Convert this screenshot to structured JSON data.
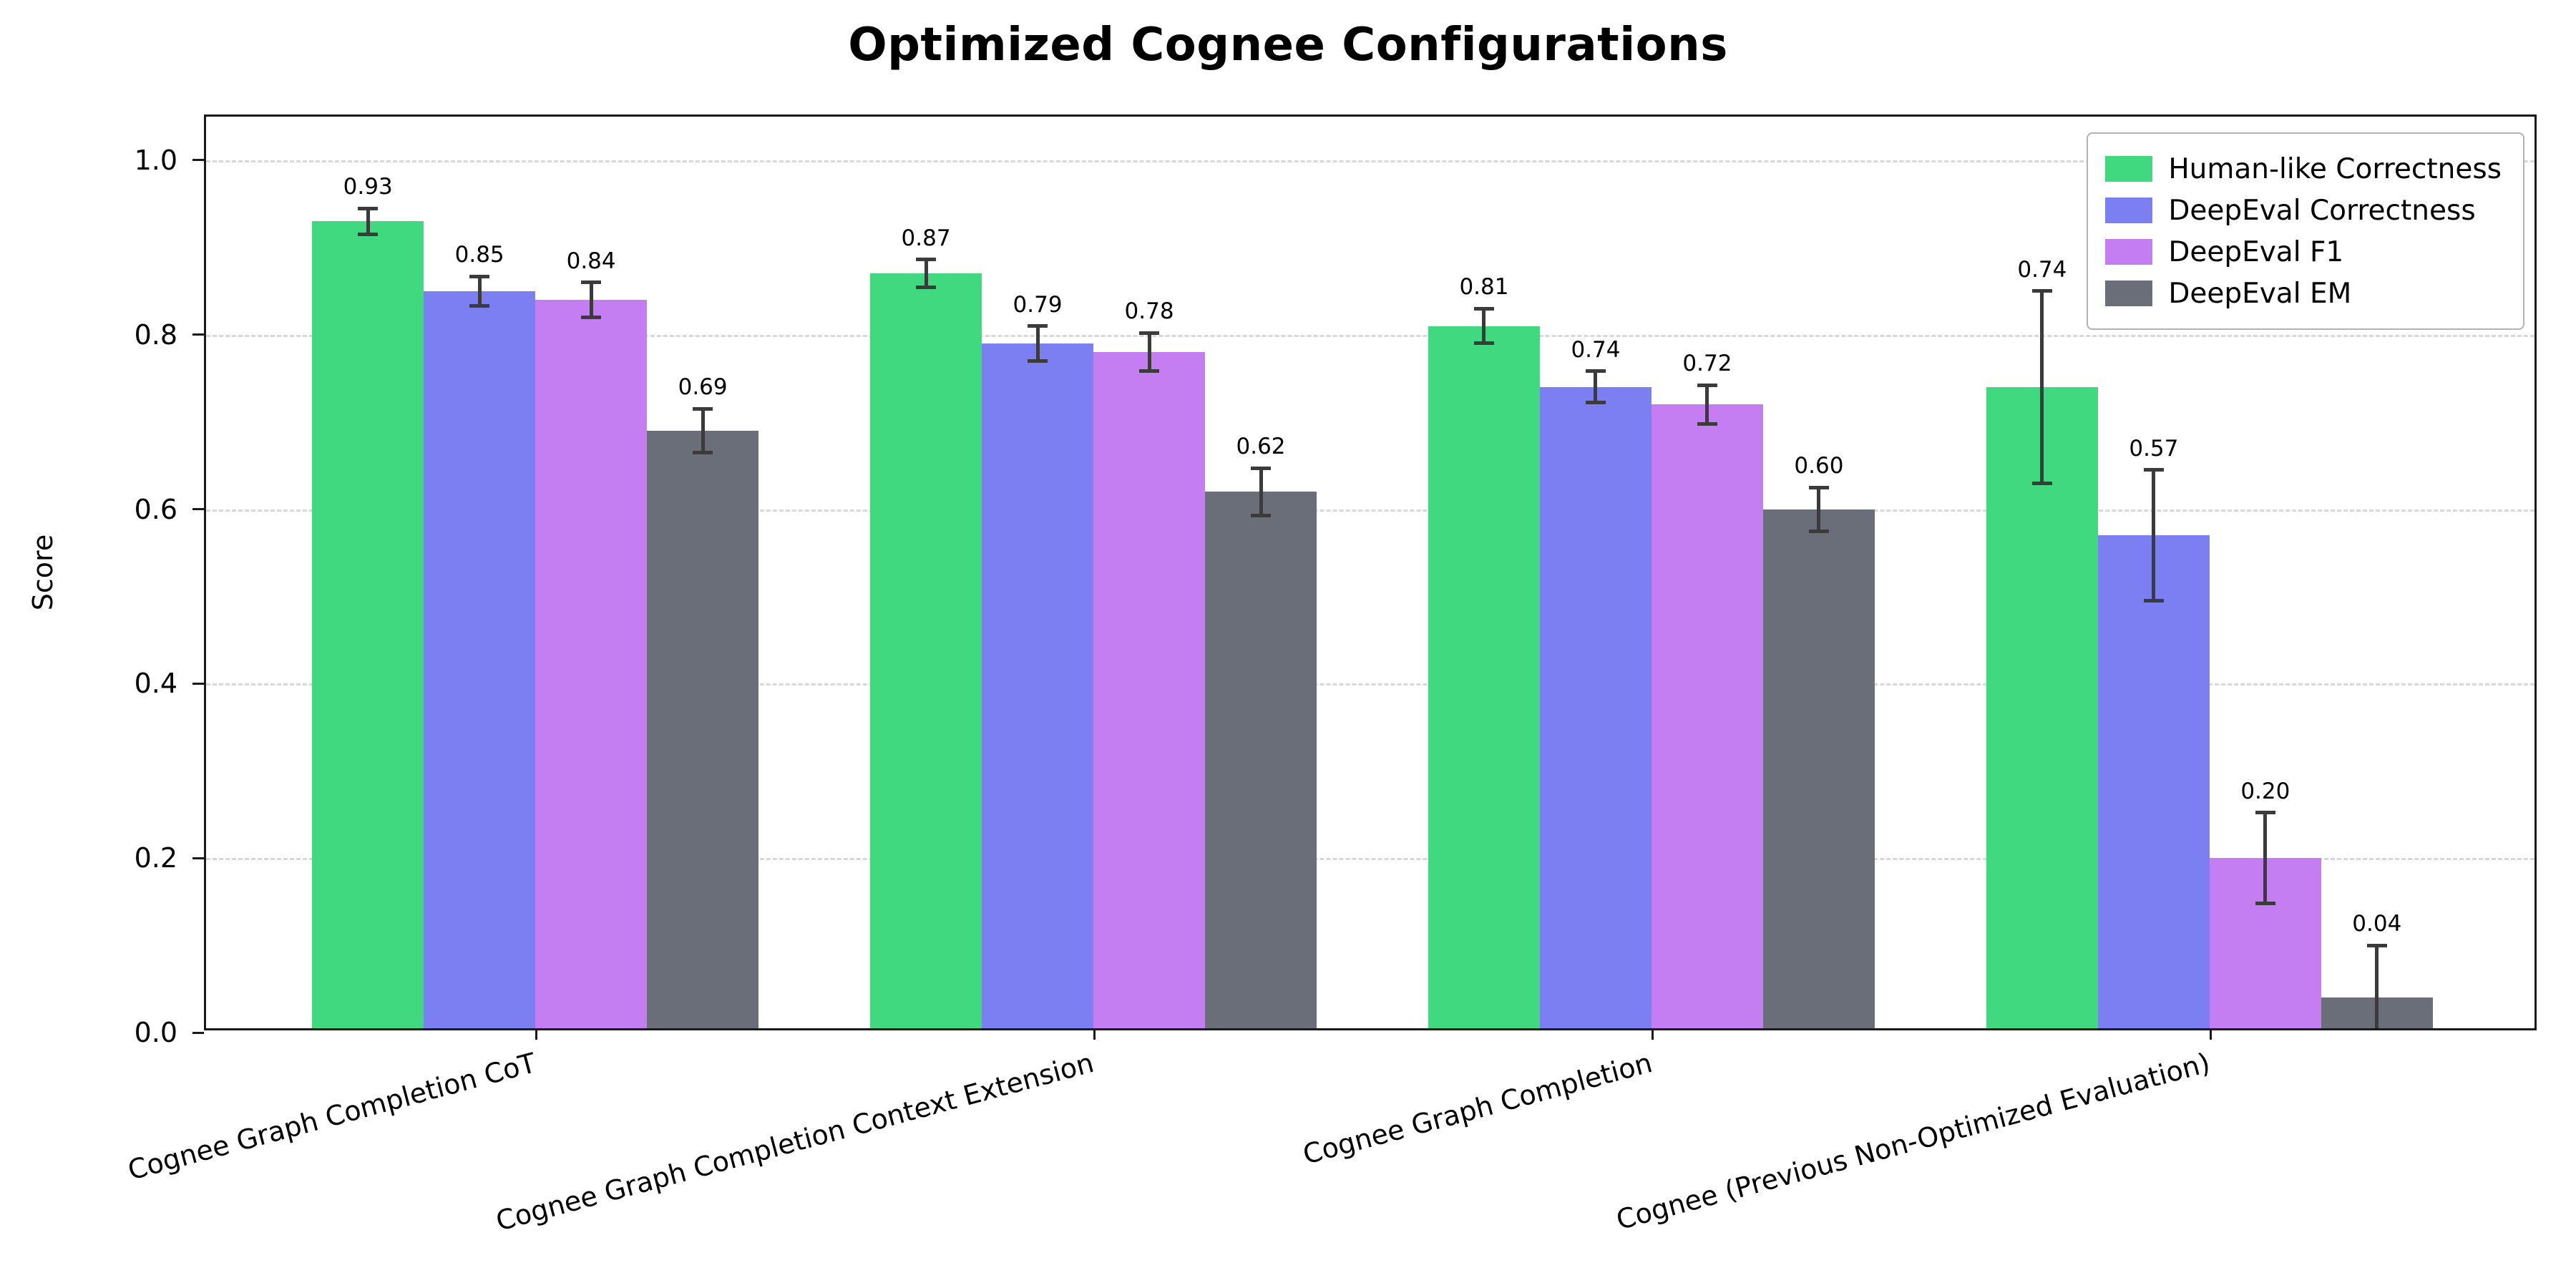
{
  "chart_data": {
    "type": "bar",
    "title": "Optimized Cognee Configurations",
    "ylabel": "Score",
    "xlabel": "",
    "ylim": [
      0,
      1.05
    ],
    "yticks": [
      0.0,
      0.2,
      0.4,
      0.6,
      0.8,
      1.0
    ],
    "ytick_labels": [
      "0.0",
      "0.2",
      "0.4",
      "0.6",
      "0.8",
      "1.0"
    ],
    "grid": "horizontal-dashed",
    "legend_position": "upper-right",
    "error_bar_color": "#3b3b3b",
    "categories": [
      "Cognee Graph Completion CoT",
      "Cognee Graph Completion Context Extension",
      "Cognee Graph Completion",
      "Cognee (Previous Non-Optimized Evaluation)"
    ],
    "series": [
      {
        "name": "Human-like Correctness",
        "color": "#41d97f",
        "values": [
          0.93,
          0.87,
          0.81,
          0.74
        ],
        "errors": [
          0.015,
          0.016,
          0.02,
          0.11
        ]
      },
      {
        "name": "DeepEval Correctness",
        "color": "#7c7ff2",
        "values": [
          0.85,
          0.79,
          0.74,
          0.57
        ],
        "errors": [
          0.017,
          0.02,
          0.018,
          0.075
        ]
      },
      {
        "name": "DeepEval F1",
        "color": "#c47ef2",
        "values": [
          0.84,
          0.78,
          0.72,
          0.2
        ],
        "errors": [
          0.02,
          0.022,
          0.022,
          0.052
        ]
      },
      {
        "name": "DeepEval EM",
        "color": "#696e78",
        "values": [
          0.69,
          0.62,
          0.6,
          0.04
        ],
        "errors": [
          0.025,
          0.027,
          0.025,
          0.06
        ]
      }
    ]
  }
}
